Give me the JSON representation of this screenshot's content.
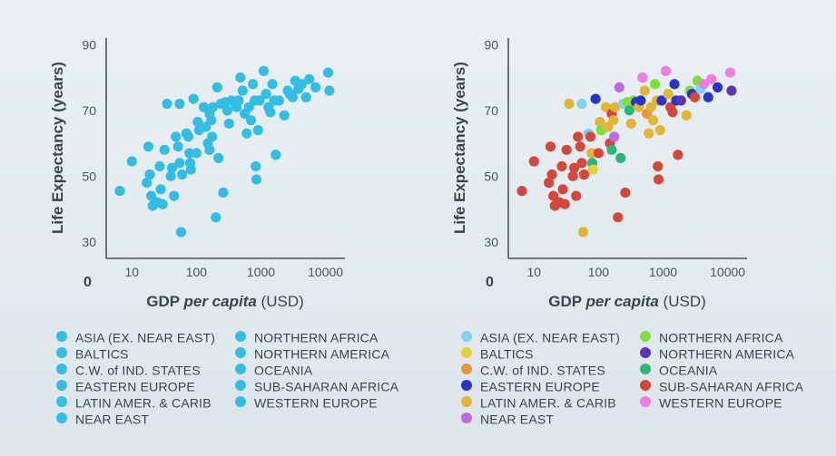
{
  "chart_data": [
    {
      "type": "scatter",
      "xlabel_parts": [
        "GDP ",
        "per capita",
        " (USD)"
      ],
      "ylabel": "Life Expectancy (years)",
      "x_scale": "log",
      "xlim": [
        4,
        20000
      ],
      "ylim": [
        25,
        92
      ],
      "x_ticks": [
        10,
        100,
        1000,
        10000
      ],
      "x_tick_labels": [
        "10",
        "100",
        "1000",
        "10000"
      ],
      "y_ticks": [
        30,
        50,
        70,
        90
      ],
      "y_tick_labels": [
        "30",
        "50",
        "70",
        "90"
      ],
      "origin_label": "0",
      "colored_by_region": false,
      "single_color": "#34bde3"
    },
    {
      "type": "scatter",
      "xlabel_parts": [
        "GDP ",
        "per capita",
        " (USD)"
      ],
      "ylabel": "Life Expectancy (years)",
      "x_scale": "log",
      "xlim": [
        4,
        20000
      ],
      "ylim": [
        25,
        92
      ],
      "x_ticks": [
        10,
        100,
        1000,
        10000
      ],
      "x_tick_labels": [
        "10",
        "100",
        "1000",
        "10000"
      ],
      "y_ticks": [
        30,
        50,
        70,
        90
      ],
      "y_tick_labels": [
        "30",
        "50",
        "70",
        "90"
      ],
      "origin_label": "0",
      "colored_by_region": true
    }
  ],
  "regions": [
    {
      "key": "asia",
      "label": "ASIA (EX. NEAR EAST)",
      "color": "#7fd3ee"
    },
    {
      "key": "baltics",
      "label": "BALTICS",
      "color": "#e2d238"
    },
    {
      "key": "cis",
      "label": "C.W. of IND. STATES",
      "color": "#e8963c"
    },
    {
      "key": "eeurope",
      "label": "EASTERN EUROPE",
      "color": "#2b33c9"
    },
    {
      "key": "latam",
      "label": "LATIN AMER. & CARIB",
      "color": "#e1b53a"
    },
    {
      "key": "neareast",
      "label": "NEAR EAST",
      "color": "#bf6bdf"
    },
    {
      "key": "nafrica",
      "label": "NORTHERN AFRICA",
      "color": "#7fde3c"
    },
    {
      "key": "namerica",
      "label": "NORTHERN AMERICA",
      "color": "#5b34b8"
    },
    {
      "key": "oceania",
      "label": "OCEANIA",
      "color": "#2fb478"
    },
    {
      "key": "ssafrica",
      "label": "SUB-SAHARAN AFRICA",
      "color": "#d4473c"
    },
    {
      "key": "weurope",
      "label": "WESTERN EUROPE",
      "color": "#ef7ee2"
    }
  ],
  "points": [
    {
      "x": 6.5,
      "y": 45.5,
      "r": "ssafrica"
    },
    {
      "x": 10,
      "y": 54.5,
      "r": "ssafrica"
    },
    {
      "x": 17,
      "y": 48,
      "r": "ssafrica"
    },
    {
      "x": 18,
      "y": 59,
      "r": "ssafrica"
    },
    {
      "x": 19,
      "y": 50.5,
      "r": "ssafrica"
    },
    {
      "x": 20,
      "y": 44,
      "r": "ssafrica"
    },
    {
      "x": 21,
      "y": 41,
      "r": "ssafrica"
    },
    {
      "x": 25,
      "y": 42,
      "r": "ssafrica"
    },
    {
      "x": 27,
      "y": 53,
      "r": "ssafrica"
    },
    {
      "x": 28,
      "y": 46,
      "r": "ssafrica"
    },
    {
      "x": 30,
      "y": 41.5,
      "r": "ssafrica"
    },
    {
      "x": 32,
      "y": 58,
      "r": "ssafrica"
    },
    {
      "x": 35,
      "y": 72,
      "r": "latam"
    },
    {
      "x": 40,
      "y": 50,
      "r": "ssafrica"
    },
    {
      "x": 42,
      "y": 52.5,
      "r": "ssafrica"
    },
    {
      "x": 45,
      "y": 44,
      "r": "ssafrica"
    },
    {
      "x": 48,
      "y": 62,
      "r": "ssafrica"
    },
    {
      "x": 52,
      "y": 59,
      "r": "ssafrica"
    },
    {
      "x": 55,
      "y": 72,
      "r": "asia"
    },
    {
      "x": 55,
      "y": 54,
      "r": "ssafrica"
    },
    {
      "x": 58,
      "y": 33,
      "r": "latam"
    },
    {
      "x": 60,
      "y": 50.5,
      "r": "ssafrica"
    },
    {
      "x": 70,
      "y": 63,
      "r": "asia"
    },
    {
      "x": 75,
      "y": 62,
      "r": "ssafrica"
    },
    {
      "x": 78,
      "y": 57,
      "r": "latam"
    },
    {
      "x": 80,
      "y": 54,
      "r": "oceania"
    },
    {
      "x": 82,
      "y": 52,
      "r": "baltics"
    },
    {
      "x": 90,
      "y": 73.5,
      "r": "eeurope"
    },
    {
      "x": 100,
      "y": 57,
      "r": "ssafrica"
    },
    {
      "x": 105,
      "y": 66.5,
      "r": "latam"
    },
    {
      "x": 110,
      "y": 64,
      "r": "nafrica"
    },
    {
      "x": 130,
      "y": 71,
      "r": "latam"
    },
    {
      "x": 140,
      "y": 65,
      "r": "latam"
    },
    {
      "x": 150,
      "y": 60,
      "r": "ssafrica"
    },
    {
      "x": 160,
      "y": 58,
      "r": "oceania"
    },
    {
      "x": 160,
      "y": 69,
      "r": "ssafrica"
    },
    {
      "x": 170,
      "y": 67,
      "r": "latam"
    },
    {
      "x": 175,
      "y": 62,
      "r": "neareast"
    },
    {
      "x": 180,
      "y": 71,
      "r": "latam"
    },
    {
      "x": 200,
      "y": 37.5,
      "r": "ssafrica"
    },
    {
      "x": 210,
      "y": 77,
      "r": "neareast"
    },
    {
      "x": 220,
      "y": 55.5,
      "r": "oceania"
    },
    {
      "x": 240,
      "y": 72,
      "r": "asia"
    },
    {
      "x": 260,
      "y": 45,
      "r": "ssafrica"
    },
    {
      "x": 280,
      "y": 72.5,
      "r": "nafrica"
    },
    {
      "x": 300,
      "y": 70,
      "r": "oceania"
    },
    {
      "x": 320,
      "y": 66,
      "r": "latam"
    },
    {
      "x": 350,
      "y": 73,
      "r": "nafrica"
    },
    {
      "x": 380,
      "y": 72.5,
      "r": "eeurope"
    },
    {
      "x": 420,
      "y": 71,
      "r": "latam"
    },
    {
      "x": 450,
      "y": 73,
      "r": "eeurope"
    },
    {
      "x": 480,
      "y": 80,
      "r": "weurope"
    },
    {
      "x": 520,
      "y": 76,
      "r": "latam"
    },
    {
      "x": 560,
      "y": 69,
      "r": "cis"
    },
    {
      "x": 600,
      "y": 63,
      "r": "latam"
    },
    {
      "x": 650,
      "y": 71,
      "r": "latam"
    },
    {
      "x": 700,
      "y": 67,
      "r": "latam"
    },
    {
      "x": 750,
      "y": 78,
      "r": "nafrica"
    },
    {
      "x": 800,
      "y": 73,
      "r": "latam"
    },
    {
      "x": 830,
      "y": 53,
      "r": "ssafrica"
    },
    {
      "x": 850,
      "y": 49,
      "r": "ssafrica"
    },
    {
      "x": 900,
      "y": 64,
      "r": "latam"
    },
    {
      "x": 950,
      "y": 73,
      "r": "eeurope"
    },
    {
      "x": 1100,
      "y": 82,
      "r": "weurope"
    },
    {
      "x": 1200,
      "y": 75,
      "r": "latam"
    },
    {
      "x": 1300,
      "y": 71,
      "r": "ssafrica"
    },
    {
      "x": 1400,
      "y": 69.5,
      "r": "ssafrica"
    },
    {
      "x": 1500,
      "y": 78,
      "r": "eeurope"
    },
    {
      "x": 1600,
      "y": 73,
      "r": "eeurope"
    },
    {
      "x": 1700,
      "y": 56.5,
      "r": "ssafrica"
    },
    {
      "x": 1900,
      "y": 73,
      "r": "namerica"
    },
    {
      "x": 2300,
      "y": 68.5,
      "r": "latam"
    },
    {
      "x": 2600,
      "y": 76,
      "r": "nafrica"
    },
    {
      "x": 2800,
      "y": 75,
      "r": "eeurope"
    },
    {
      "x": 3100,
      "y": 74,
      "r": "ssafrica"
    },
    {
      "x": 3400,
      "y": 79,
      "r": "nafrica"
    },
    {
      "x": 3800,
      "y": 76.5,
      "r": "asia"
    },
    {
      "x": 4300,
      "y": 78,
      "r": "weurope"
    },
    {
      "x": 5000,
      "y": 74,
      "r": "eeurope"
    },
    {
      "x": 5600,
      "y": 79.5,
      "r": "weurope"
    },
    {
      "x": 7000,
      "y": 77,
      "r": "eeurope"
    },
    {
      "x": 11000,
      "y": 81.5,
      "r": "weurope"
    },
    {
      "x": 11500,
      "y": 76,
      "r": "namerica"
    }
  ]
}
